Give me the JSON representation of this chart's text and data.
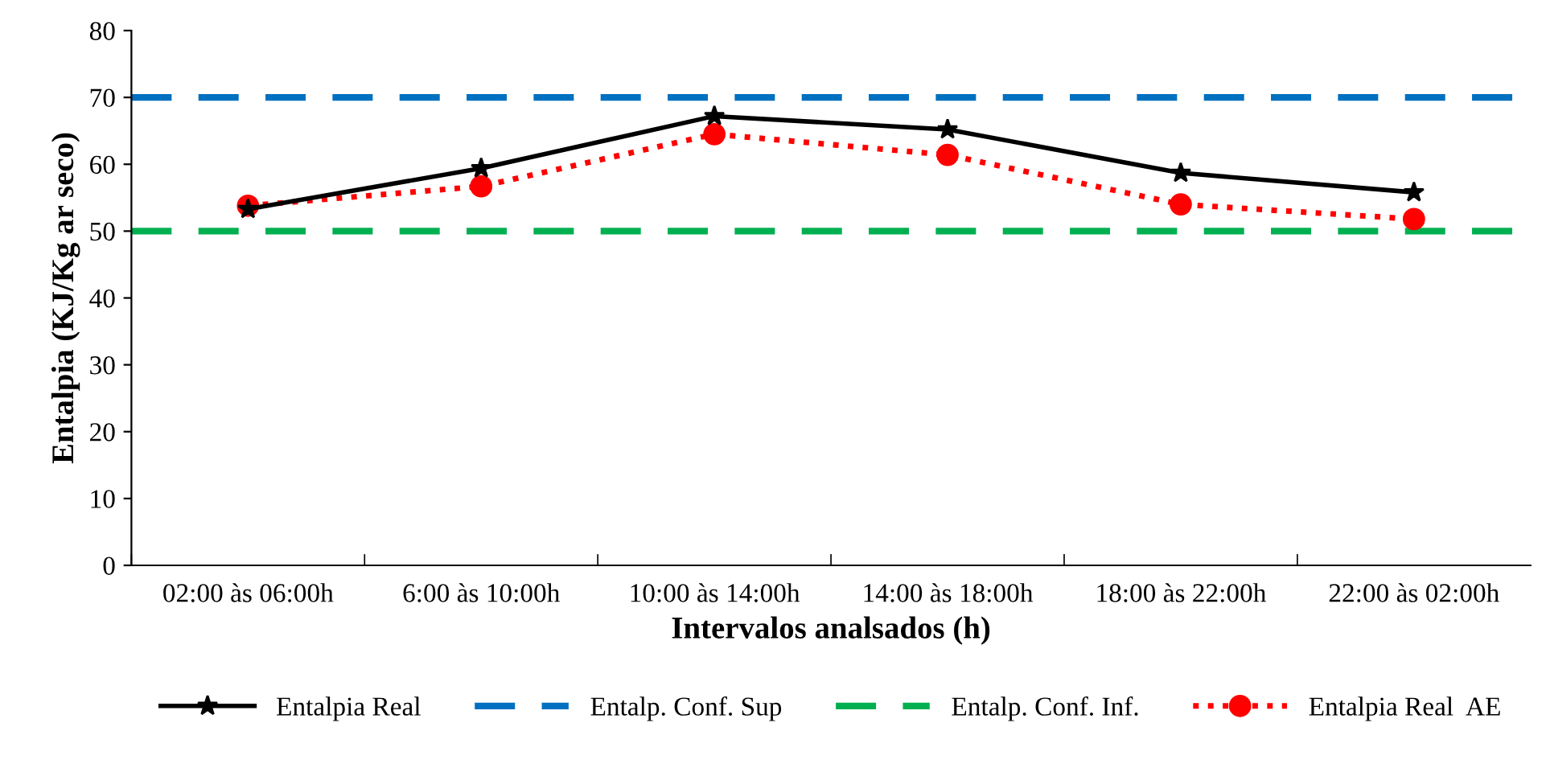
{
  "chart_data": {
    "type": "line",
    "xlabel": "Intervalos analsados (h)",
    "ylabel": "Entalpia (KJ/Kg ar seco)",
    "categories": [
      "02:00 às 06:00h",
      "6:00 às 10:00h",
      "10:00 às 14:00h",
      "14:00 às 18:00h",
      "18:00 às 22:00h",
      "22:00 às 02:00h"
    ],
    "series": [
      {
        "name": "Entalpia Real",
        "color": "#000000",
        "values": [
          53.3,
          59.4,
          67.2,
          65.2,
          58.7,
          55.8
        ],
        "marker": "star",
        "line_style": "solid"
      },
      {
        "name": "Entalpia Real  AE",
        "color": "#ff0000",
        "values": [
          53.8,
          56.7,
          64.5,
          61.4,
          54.0,
          51.8
        ],
        "marker": "circle",
        "line_style": "dotted"
      }
    ],
    "ref_lines": [
      {
        "axis": "y",
        "value": 70,
        "label": "Entalp. Conf. Sup",
        "color": "#0070c0",
        "line_style": "dashed"
      },
      {
        "axis": "y",
        "value": 50,
        "label": "Entalp. Conf. Inf.",
        "color": "#00b050",
        "line_style": "dashed"
      }
    ],
    "ylim": [
      0,
      80
    ],
    "yticks": [
      0,
      10,
      20,
      30,
      40,
      50,
      60,
      70,
      80
    ],
    "grid": false,
    "legend": "bottom"
  }
}
